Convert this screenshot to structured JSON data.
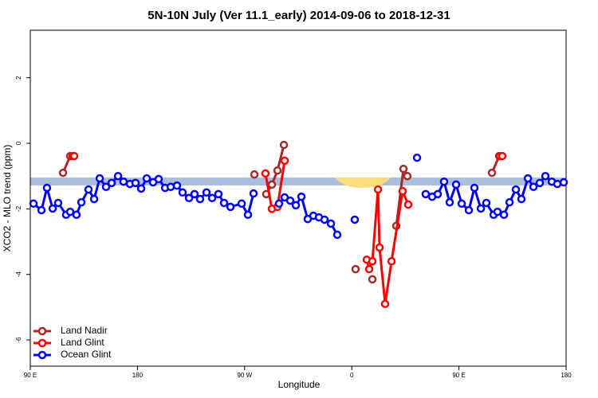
{
  "chart_data": {
    "type": "line",
    "title": "5N-10N July (Ver 11.1_early)   2014-09-06 to 2018-12-31",
    "xlabel": "Longitude",
    "ylabel": "XCO2 - MLO trend (ppm)",
    "xlim": [
      90,
      540
    ],
    "xticks": [
      {
        "value": 90,
        "label": "90 E"
      },
      180,
      {
        "value": 270,
        "label": "90 W"
      },
      {
        "value": 360,
        "label": "0"
      },
      {
        "value": 450,
        "label": "90 E"
      },
      {
        "value": 540,
        "label": "180"
      }
    ],
    "ylim": [
      -6.8,
      3.45
    ],
    "yticks": [
      -6,
      -4,
      -2,
      0,
      2
    ],
    "legend": "bottom-left",
    "series": [
      {
        "name": "Land Nadir",
        "color": "#a52a2a",
        "x": [
          117.5,
          123.5,
          null,
          278.2,
          null,
          288.2,
          292.9,
          297.6,
          303,
          null,
          363.2,
          null,
          377.3,
          null,
          397.4,
          403.4,
          406.7,
          null,
          477.7,
          483.8
        ],
        "values": [
          -0.9,
          -0.39,
          null,
          -0.95,
          null,
          -1.55,
          -1.26,
          -0.83,
          -0.05,
          null,
          -3.84,
          null,
          -4.15,
          null,
          -2.52,
          -0.78,
          -1.0,
          null,
          -0.9,
          -0.39
        ]
      },
      {
        "name": "Land Glint",
        "color": "#ff0000",
        "x": [
          125.5,
          126.8,
          null,
          287.5,
          292.9,
          297.6,
          303.6,
          null,
          372.6,
          374.6,
          377.3,
          382,
          383.3,
          388,
          393.4,
          402.7,
          407.4,
          null,
          484.4,
          486.4
        ],
        "values": [
          -0.39,
          -0.39,
          null,
          -0.92,
          -2.0,
          -1.94,
          -0.53,
          null,
          -3.55,
          -3.84,
          -3.6,
          -1.41,
          -3.18,
          -4.9,
          -3.6,
          -1.46,
          -1.87,
          null,
          -0.39,
          -0.39
        ]
      },
      {
        "name": "Ocean Glint",
        "color": "#0000ff",
        "x": [
          92.7,
          99.4,
          104,
          108.8,
          113.4,
          120.1,
          123.5,
          128.8,
          132.9,
          138.9,
          143.6,
          148.3,
          153.6,
          158.3,
          163.7,
          168.3,
          173.7,
          178.4,
          183.1,
          187.8,
          193.1,
          197.8,
          203.2,
          207.9,
          213.2,
          217.9,
          223.3,
          227.9,
          232.6,
          238,
          242.7,
          248,
          252.7,
          258.1,
          267.5,
          272.8,
          277.5,
          null,
          298.9,
          303.6,
          308.3,
          313,
          317.7,
          323,
          327.7,
          332.4,
          337.1,
          342.5,
          347.8,
          null,
          362.5,
          null,
          414.8,
          null,
          422.1,
          427.5,
          432.2,
          437.5,
          442.2,
          447.6,
          452.3,
          458.3,
          463,
          468.4,
          473,
          479.1,
          482.4,
          487.8,
          492.5,
          497.8,
          502.5,
          507.9,
          512.6,
          517.9,
          522.6,
          528,
          532.6,
          538
        ],
        "values": [
          -1.84,
          -2.04,
          -1.36,
          -1.99,
          -1.82,
          -2.18,
          -2.09,
          -2.18,
          -1.8,
          -1.41,
          -1.7,
          -1.07,
          -1.33,
          -1.21,
          -1.0,
          -1.17,
          -1.24,
          -1.21,
          -1.38,
          -1.07,
          -1.19,
          -1.09,
          -1.36,
          -1.33,
          -1.29,
          -1.5,
          -1.67,
          -1.55,
          -1.7,
          -1.5,
          -1.67,
          -1.55,
          -1.82,
          -1.94,
          -1.84,
          -2.18,
          -1.53,
          null,
          -1.84,
          -1.65,
          -1.75,
          -1.89,
          -1.63,
          -2.31,
          -2.21,
          -2.26,
          -2.33,
          -2.45,
          -2.79,
          null,
          -2.33,
          null,
          -0.44,
          null,
          -1.55,
          -1.63,
          -1.55,
          -1.17,
          -1.8,
          -1.26,
          -1.84,
          -2.04,
          -1.36,
          -1.99,
          -1.82,
          -2.18,
          -2.09,
          -2.18,
          -1.8,
          -1.41,
          -1.7,
          -1.07,
          -1.33,
          -1.21,
          -1.0,
          -1.17,
          -1.24,
          -1.19
        ]
      }
    ]
  }
}
